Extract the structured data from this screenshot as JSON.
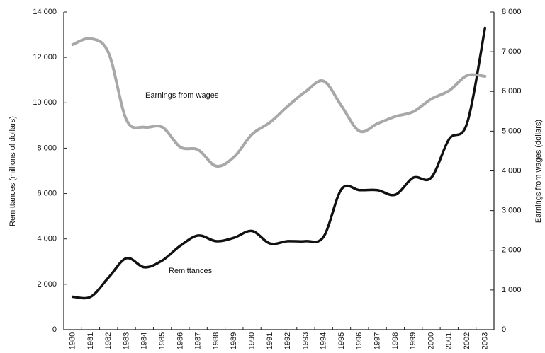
{
  "chart_data": {
    "type": "line",
    "y_label": "Remittances (millions of dollars)",
    "y2_label": "Earnings from wages (dollars)",
    "categories": [
      "1980",
      "1981",
      "1982",
      "1983",
      "1984",
      "1985",
      "1986",
      "1987",
      "1988",
      "1989",
      "1990",
      "1991",
      "1992",
      "1993",
      "1994",
      "1995",
      "1996",
      "1997",
      "1998",
      "1999",
      "2000",
      "2001",
      "2002",
      "2003"
    ],
    "series": [
      {
        "name": "Remittances",
        "color": "#111111",
        "axis": "y",
        "values": [
          1450,
          1450,
          2300,
          3150,
          2750,
          3050,
          3700,
          4150,
          3900,
          4050,
          4350,
          3800,
          3900,
          3900,
          4100,
          6200,
          6150,
          6150,
          5950,
          6700,
          6700,
          8400,
          9100,
          13300
        ]
      },
      {
        "name": "Earnings from wages",
        "color": "#a8a8a8",
        "axis": "y2",
        "values": [
          7180,
          7330,
          6970,
          5280,
          5100,
          5100,
          4600,
          4530,
          4120,
          4350,
          4920,
          5220,
          5630,
          6000,
          6260,
          5630,
          5000,
          5190,
          5370,
          5490,
          5810,
          6020,
          6400,
          6380
        ]
      }
    ],
    "ylim": [
      0,
      14000
    ],
    "yticks": [
      0,
      {
        "value": 2000,
        "label": "2 000"
      },
      {
        "value": 4000,
        "label": "4 000"
      },
      {
        "value": 6000,
        "label": "6 000"
      },
      {
        "value": 8000,
        "label": "8 000"
      },
      {
        "value": 10000,
        "label": "10 000"
      },
      {
        "value": 12000,
        "label": "12 000"
      },
      {
        "value": 14000,
        "label": "14 000"
      }
    ],
    "y2lim": [
      0,
      8000
    ],
    "y2ticks": [
      0,
      {
        "value": 1000,
        "label": "1 000"
      },
      {
        "value": 2000,
        "label": "2 000"
      },
      {
        "value": 3000,
        "label": "3 000"
      },
      {
        "value": 4000,
        "label": "4 000"
      },
      {
        "value": 5000,
        "label": "5 000"
      },
      {
        "value": 6000,
        "label": "6 000"
      },
      {
        "value": 7000,
        "label": "7 000"
      },
      {
        "value": 8000,
        "label": "8 000"
      }
    ],
    "grid": false
  }
}
